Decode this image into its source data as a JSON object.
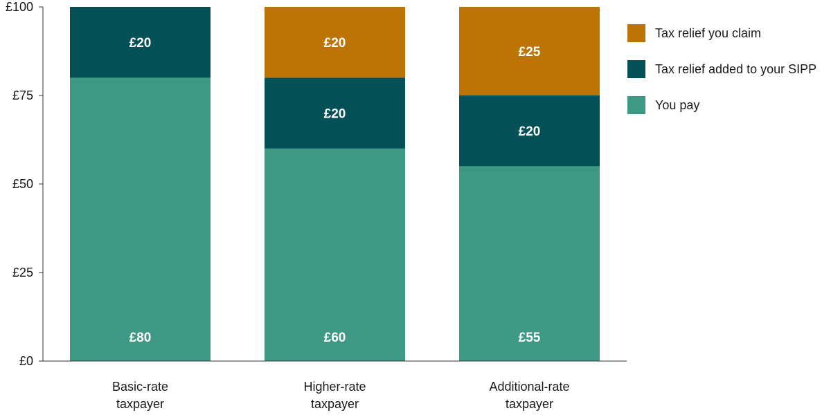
{
  "chart_data": {
    "type": "bar",
    "stacked": true,
    "categories": [
      [
        "Basic-rate",
        "taxpayer"
      ],
      [
        "Higher-rate",
        "taxpayer"
      ],
      [
        "Additional-rate",
        "taxpayer"
      ]
    ],
    "series": [
      {
        "name": "You pay",
        "color": "#3d9984",
        "values": [
          80,
          60,
          55
        ],
        "labels": [
          "£80",
          "£60",
          "£55"
        ]
      },
      {
        "name": "Tax relief added to your SIPP",
        "color": "#035157",
        "values": [
          20,
          20,
          20
        ],
        "labels": [
          "£20",
          "£20",
          "£20"
        ]
      },
      {
        "name": "Tax relief you claim",
        "color": "#bc7405",
        "values": [
          0,
          20,
          25
        ],
        "labels": [
          "",
          "£20",
          "£25"
        ]
      }
    ],
    "legend_order": [
      "Tax relief you claim",
      "Tax relief added to your SIPP",
      "You pay"
    ],
    "legend_position": "top-right",
    "ylim": [
      0,
      100
    ],
    "yticks": [
      0,
      25,
      50,
      75,
      100
    ],
    "ytick_labels": [
      "£0",
      "£25",
      "£50",
      "£75",
      "£100"
    ],
    "grid": false
  }
}
